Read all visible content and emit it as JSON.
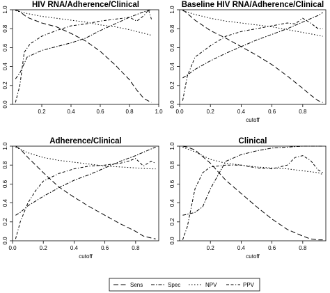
{
  "legend": {
    "entries": [
      {
        "name": "Sens",
        "dash": "7,3.5"
      },
      {
        "name": "Spec",
        "dash": "5,2,1.5,2"
      },
      {
        "name": "NPV",
        "dash": "1.5,2.5"
      },
      {
        "name": "PPV",
        "dash": "4,2.5,4,2.5,1.2,2.5"
      }
    ]
  },
  "chart_data": [
    {
      "type": "line",
      "title": "HIV RNA/Adherence/Clinical",
      "xlabel": "",
      "ylabel": "",
      "xlim": [
        0,
        1.0
      ],
      "ylim": [
        0,
        1.0
      ],
      "xticks": [
        0.2,
        0.4,
        0.6,
        0.8,
        1.0
      ],
      "xtick_labels": [
        "0.2",
        "0.4",
        "0.6",
        "0.8",
        "1.0"
      ],
      "yticks": [
        0.0,
        0.2,
        0.4,
        0.6,
        0.8,
        1.0
      ],
      "ytick_labels": [
        "0.0",
        "0.2",
        "0.4",
        "0.6",
        "0.8",
        "1.0"
      ],
      "grid": false,
      "series": [
        {
          "name": "Sens",
          "x": [
            0.02,
            0.05,
            0.1,
            0.2,
            0.3,
            0.4,
            0.5,
            0.6,
            0.7,
            0.8,
            0.85,
            0.9,
            0.95
          ],
          "y": [
            1.0,
            0.98,
            0.92,
            0.86,
            0.82,
            0.75,
            0.67,
            0.56,
            0.42,
            0.26,
            0.15,
            0.06,
            0.02
          ]
        },
        {
          "name": "Spec",
          "x": [
            0.02,
            0.05,
            0.1,
            0.2,
            0.3,
            0.4,
            0.5,
            0.6,
            0.7,
            0.8,
            0.9,
            0.95
          ],
          "y": [
            0.27,
            0.33,
            0.5,
            0.57,
            0.61,
            0.65,
            0.7,
            0.78,
            0.85,
            0.92,
            0.98,
            1.0
          ]
        },
        {
          "name": "NPV",
          "x": [
            0.02,
            0.1,
            0.2,
            0.3,
            0.4,
            0.5,
            0.6,
            0.7,
            0.8,
            0.9,
            0.95
          ],
          "y": [
            0.99,
            0.96,
            0.93,
            0.91,
            0.89,
            0.87,
            0.84,
            0.82,
            0.79,
            0.75,
            0.73
          ]
        },
        {
          "name": "PPV",
          "x": [
            0.02,
            0.05,
            0.08,
            0.12,
            0.2,
            0.3,
            0.4,
            0.5,
            0.6,
            0.7,
            0.8,
            0.85,
            0.9,
            0.93,
            0.95
          ],
          "y": [
            0.02,
            0.2,
            0.55,
            0.64,
            0.72,
            0.78,
            0.83,
            0.85,
            0.88,
            0.9,
            0.92,
            0.88,
            0.94,
            1.0,
            0.9
          ]
        }
      ]
    },
    {
      "type": "line",
      "title": "Baseline HIV RNA/Adherence/Clinical",
      "xlabel": "cutoff",
      "ylabel": "",
      "xlim": [
        0,
        0.95
      ],
      "ylim": [
        0,
        1.0
      ],
      "xticks": [
        0.0,
        0.2,
        0.4,
        0.6,
        0.8
      ],
      "xtick_labels": [
        "0.0",
        "0.2",
        "0.4",
        "0.6",
        "0.8"
      ],
      "yticks": [
        0.0,
        0.2,
        0.4,
        0.6,
        0.8,
        1.0
      ],
      "ytick_labels": [
        "0.0",
        "0.2",
        "0.4",
        "0.6",
        "0.8",
        "1.0"
      ],
      "grid": false,
      "series": [
        {
          "name": "Sens",
          "x": [
            0.02,
            0.05,
            0.1,
            0.2,
            0.3,
            0.4,
            0.5,
            0.6,
            0.7,
            0.8,
            0.85,
            0.9,
            0.93
          ],
          "y": [
            1.0,
            0.96,
            0.89,
            0.78,
            0.7,
            0.61,
            0.52,
            0.42,
            0.3,
            0.17,
            0.1,
            0.04,
            0.02
          ]
        },
        {
          "name": "Spec",
          "x": [
            0.02,
            0.05,
            0.1,
            0.2,
            0.3,
            0.4,
            0.5,
            0.6,
            0.7,
            0.8,
            0.9,
            0.93
          ],
          "y": [
            0.28,
            0.31,
            0.37,
            0.46,
            0.54,
            0.61,
            0.68,
            0.74,
            0.8,
            0.87,
            0.94,
            0.97
          ]
        },
        {
          "name": "NPV",
          "x": [
            0.02,
            0.1,
            0.2,
            0.3,
            0.4,
            0.5,
            0.6,
            0.7,
            0.8,
            0.9,
            0.93
          ],
          "y": [
            0.99,
            0.95,
            0.91,
            0.88,
            0.86,
            0.84,
            0.82,
            0.79,
            0.76,
            0.73,
            0.72
          ]
        },
        {
          "name": "PPV",
          "x": [
            0.02,
            0.05,
            0.1,
            0.2,
            0.3,
            0.4,
            0.5,
            0.6,
            0.7,
            0.75,
            0.8,
            0.85,
            0.9,
            0.93
          ],
          "y": [
            0.04,
            0.3,
            0.5,
            0.62,
            0.72,
            0.77,
            0.8,
            0.83,
            0.86,
            0.85,
            0.91,
            0.86,
            0.8,
            0.8
          ]
        }
      ]
    },
    {
      "type": "line",
      "title": "Adherence/Clinical",
      "xlabel": "cutoff",
      "ylabel": "",
      "xlim": [
        0,
        0.95
      ],
      "ylim": [
        0,
        1.0
      ],
      "xticks": [
        0.0,
        0.2,
        0.4,
        0.6,
        0.8
      ],
      "xtick_labels": [
        "0.0",
        "0.2",
        "0.4",
        "0.6",
        "0.8"
      ],
      "yticks": [
        0.0,
        0.2,
        0.4,
        0.6,
        0.8,
        1.0
      ],
      "ytick_labels": [
        "0.0",
        "0.2",
        "0.4",
        "0.6",
        "0.8",
        "1.0"
      ],
      "grid": false,
      "series": [
        {
          "name": "Sens",
          "x": [
            0.02,
            0.05,
            0.1,
            0.2,
            0.3,
            0.4,
            0.5,
            0.6,
            0.7,
            0.8,
            0.85,
            0.9,
            0.93
          ],
          "y": [
            1.0,
            0.97,
            0.88,
            0.72,
            0.57,
            0.46,
            0.36,
            0.27,
            0.18,
            0.1,
            0.05,
            0.03,
            0.02
          ]
        },
        {
          "name": "Spec",
          "x": [
            0.02,
            0.05,
            0.1,
            0.2,
            0.3,
            0.4,
            0.5,
            0.6,
            0.7,
            0.8,
            0.9,
            0.93
          ],
          "y": [
            0.27,
            0.3,
            0.37,
            0.47,
            0.56,
            0.64,
            0.7,
            0.77,
            0.84,
            0.9,
            0.97,
            0.99
          ]
        },
        {
          "name": "NPV",
          "x": [
            0.02,
            0.1,
            0.2,
            0.3,
            0.4,
            0.5,
            0.6,
            0.7,
            0.8,
            0.9,
            0.93
          ],
          "y": [
            0.99,
            0.93,
            0.88,
            0.85,
            0.83,
            0.81,
            0.79,
            0.78,
            0.77,
            0.76,
            0.76
          ]
        },
        {
          "name": "PPV",
          "x": [
            0.02,
            0.05,
            0.1,
            0.15,
            0.2,
            0.3,
            0.4,
            0.5,
            0.6,
            0.7,
            0.75,
            0.8,
            0.85,
            0.9,
            0.93
          ],
          "y": [
            0.02,
            0.2,
            0.4,
            0.53,
            0.63,
            0.71,
            0.76,
            0.79,
            0.8,
            0.82,
            0.84,
            0.87,
            0.79,
            0.84,
            0.82
          ]
        }
      ]
    },
    {
      "type": "line",
      "title": "Clinical",
      "xlabel": "cutoff",
      "ylabel": "",
      "xlim": [
        0,
        0.95
      ],
      "ylim": [
        0,
        1.0
      ],
      "xticks": [
        0.2,
        0.4,
        0.6,
        0.8
      ],
      "xtick_labels": [
        "0.2",
        "0.4",
        "0.6",
        "0.8"
      ],
      "yticks": [
        0.0,
        0.2,
        0.4,
        0.6,
        0.8,
        1.0
      ],
      "ytick_labels": [
        "0.0",
        "0.2",
        "0.4",
        "0.6",
        "0.8",
        "1.0"
      ],
      "grid": false,
      "series": [
        {
          "name": "Sens",
          "x": [
            0.02,
            0.05,
            0.1,
            0.2,
            0.3,
            0.4,
            0.5,
            0.6,
            0.7,
            0.8,
            0.85,
            0.9,
            0.93
          ],
          "y": [
            1.0,
            0.99,
            0.96,
            0.82,
            0.64,
            0.5,
            0.36,
            0.23,
            0.12,
            0.05,
            0.02,
            0.01,
            0.01
          ]
        },
        {
          "name": "Spec",
          "x": [
            0.02,
            0.05,
            0.1,
            0.15,
            0.2,
            0.3,
            0.4,
            0.5,
            0.6,
            0.7,
            0.8,
            0.9,
            0.93
          ],
          "y": [
            0.27,
            0.28,
            0.3,
            0.36,
            0.55,
            0.84,
            0.91,
            0.95,
            0.98,
            0.99,
            1.0,
            1.0,
            1.0
          ]
        },
        {
          "name": "NPV",
          "x": [
            0.02,
            0.1,
            0.2,
            0.3,
            0.4,
            0.5,
            0.6,
            0.7,
            0.8,
            0.9,
            0.93
          ],
          "y": [
            0.99,
            0.94,
            0.86,
            0.82,
            0.8,
            0.78,
            0.77,
            0.76,
            0.74,
            0.72,
            0.7
          ]
        },
        {
          "name": "PPV",
          "x": [
            0.02,
            0.05,
            0.1,
            0.15,
            0.2,
            0.3,
            0.4,
            0.5,
            0.6,
            0.7,
            0.75,
            0.8,
            0.85,
            0.9,
            0.93
          ],
          "y": [
            0.01,
            0.15,
            0.55,
            0.72,
            0.78,
            0.8,
            0.8,
            0.77,
            0.76,
            0.8,
            0.88,
            0.9,
            0.85,
            0.75,
            0.72
          ]
        }
      ]
    }
  ]
}
